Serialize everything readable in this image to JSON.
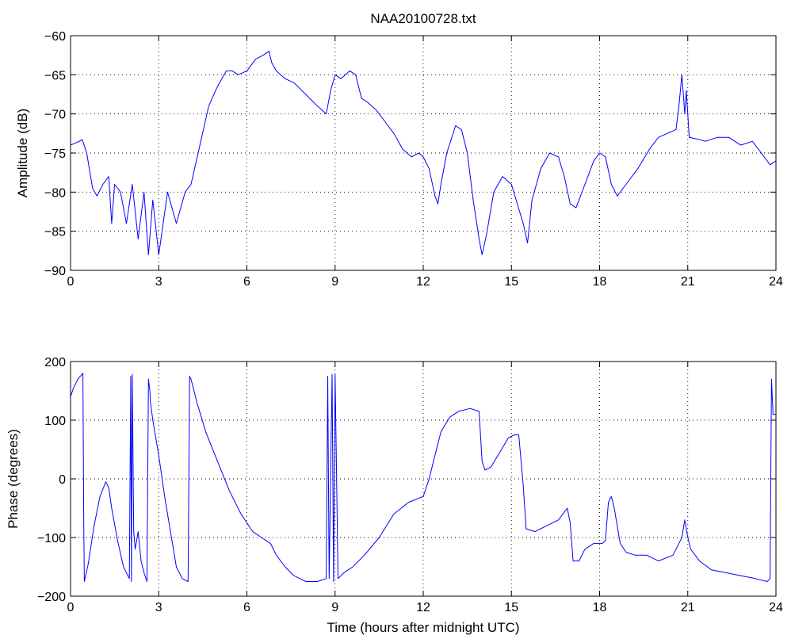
{
  "chart_data": [
    {
      "type": "line",
      "title": "NAA20100728.txt",
      "xlabel": "",
      "ylabel": "Amplitude (dB)",
      "xlim": [
        0,
        24
      ],
      "ylim": [
        -90,
        -60
      ],
      "xticks": [
        "0",
        "3",
        "6",
        "9",
        "12",
        "15",
        "18",
        "21",
        "24"
      ],
      "yticks": [
        "-60",
        "-65",
        "-70",
        "-75",
        "-80",
        "-85",
        "-90"
      ],
      "grid": true,
      "color": "#0000ff",
      "series": [
        {
          "x": [
            0,
            0.3,
            0.4,
            0.55,
            0.75,
            0.9,
            1.1,
            1.3,
            1.4,
            1.5,
            1.7,
            1.9,
            2.1,
            2.3,
            2.5,
            2.65,
            2.8,
            3.0,
            3.3,
            3.6,
            3.9,
            4.1,
            4.4,
            4.7,
            5.0,
            5.3,
            5.5,
            5.7,
            6.0,
            6.3,
            6.55,
            6.75,
            6.85,
            7.0,
            7.3,
            7.6,
            8.0,
            8.4,
            8.7,
            8.85,
            9.0,
            9.2,
            9.5,
            9.7,
            9.9,
            10.1,
            10.4,
            10.7,
            11.0,
            11.3,
            11.6,
            11.85,
            12.0,
            12.2,
            12.4,
            12.5,
            12.6,
            12.8,
            13.1,
            13.3,
            13.5,
            13.7,
            13.9,
            14.0,
            14.15,
            14.4,
            14.7,
            15.0,
            15.2,
            15.4,
            15.55,
            15.7,
            16.0,
            16.3,
            16.6,
            16.8,
            17.0,
            17.2,
            17.5,
            17.8,
            18.0,
            18.2,
            18.4,
            18.6,
            18.9,
            19.3,
            19.7,
            20.0,
            20.3,
            20.6,
            20.7,
            20.8,
            20.9,
            20.95,
            21.05,
            21.3,
            21.6,
            22.0,
            22.4,
            22.8,
            23.2,
            23.5,
            23.8,
            24.0
          ],
          "y": [
            -74,
            -73.5,
            -73.3,
            -75,
            -79.5,
            -80.5,
            -79,
            -78,
            -84,
            -79,
            -80,
            -84,
            -79,
            -86,
            -80,
            -88,
            -81,
            -88,
            -80,
            -84,
            -80,
            -79,
            -74,
            -69,
            -66.5,
            -64.5,
            -64.5,
            -65,
            -64.5,
            -63,
            -62.5,
            -62,
            -63.5,
            -64.5,
            -65.5,
            -66,
            -67.5,
            -69,
            -70,
            -67,
            -65,
            -65.5,
            -64.5,
            -65,
            -68,
            -68.5,
            -69.5,
            -71,
            -72.5,
            -74.5,
            -75.5,
            -75,
            -75.5,
            -77,
            -80.5,
            -81.5,
            -79,
            -75,
            -71.5,
            -72,
            -75,
            -81,
            -86,
            -88,
            -85.5,
            -80,
            -78,
            -79,
            -81.5,
            -84,
            -86.5,
            -81,
            -77,
            -75,
            -75.5,
            -78,
            -81.5,
            -82,
            -79,
            -76,
            -75,
            -75.5,
            -79,
            -80.5,
            -79,
            -77,
            -74.5,
            -73,
            -72.5,
            -72,
            -69,
            -65,
            -70,
            -67,
            -73,
            -73.2,
            -73.5,
            -73,
            -73,
            -74,
            -73.5,
            -75,
            -76.5,
            -76
          ]
        }
      ]
    },
    {
      "type": "line",
      "title": "",
      "xlabel": "Time (hours after midnight UTC)",
      "ylabel": "Phase (degrees)",
      "xlim": [
        0,
        24
      ],
      "ylim": [
        -200,
        200
      ],
      "xticks": [
        "0",
        "3",
        "6",
        "9",
        "12",
        "15",
        "18",
        "21",
        "24"
      ],
      "yticks": [
        "200",
        "100",
        "0",
        "-100",
        "-200"
      ],
      "grid": true,
      "color": "#0000ff",
      "series": [
        {
          "x": [
            0,
            0.1,
            0.25,
            0.42,
            0.45,
            0.47,
            0.6,
            0.8,
            1.0,
            1.2,
            1.3,
            1.4,
            1.6,
            1.8,
            2.0,
            2.05,
            2.07,
            2.1,
            2.15,
            2.2,
            2.3,
            2.4,
            2.5,
            2.6,
            2.65,
            2.7,
            2.72,
            2.8,
            3.0,
            3.2,
            3.4,
            3.6,
            3.8,
            4.0,
            4.05,
            4.1,
            4.3,
            4.6,
            5.0,
            5.4,
            5.8,
            6.2,
            6.5,
            6.8,
            7.0,
            7.3,
            7.6,
            8.0,
            8.4,
            8.7,
            8.75,
            8.8,
            8.9,
            8.95,
            9.0,
            9.1,
            9.3,
            9.6,
            10.0,
            10.5,
            11.0,
            11.5,
            12.0,
            12.2,
            12.4,
            12.6,
            12.9,
            13.2,
            13.6,
            13.9,
            14.0,
            14.1,
            14.3,
            14.6,
            14.9,
            15.1,
            15.25,
            15.4,
            15.5,
            15.8,
            16.2,
            16.6,
            16.9,
            17.0,
            17.1,
            17.3,
            17.5,
            17.8,
            18.1,
            18.2,
            18.3,
            18.4,
            18.5,
            18.7,
            18.9,
            19.2,
            19.6,
            20.0,
            20.5,
            20.8,
            20.9,
            21.0,
            21.1,
            21.4,
            21.8,
            22.3,
            22.8,
            23.3,
            23.7,
            23.8,
            23.85,
            23.9,
            24.0
          ],
          "y": [
            140,
            155,
            170,
            180,
            -80,
            -175,
            -145,
            -80,
            -30,
            -5,
            -15,
            -50,
            -105,
            -150,
            -170,
            175,
            -175,
            178,
            -90,
            -120,
            -90,
            -140,
            -160,
            -175,
            170,
            150,
            130,
            100,
            40,
            -30,
            -90,
            -150,
            -170,
            -175,
            175,
            170,
            130,
            80,
            30,
            -20,
            -60,
            -90,
            -100,
            -110,
            -130,
            -150,
            -165,
            -175,
            -175,
            -170,
            175,
            -170,
            178,
            -175,
            178,
            -170,
            -160,
            -150,
            -130,
            -100,
            -60,
            -40,
            -30,
            0,
            40,
            80,
            105,
            115,
            120,
            115,
            30,
            15,
            20,
            45,
            70,
            75,
            75,
            -10,
            -85,
            -90,
            -80,
            -70,
            -50,
            -75,
            -140,
            -140,
            -120,
            -110,
            -110,
            -105,
            -40,
            -30,
            -50,
            -110,
            -125,
            -130,
            -130,
            -140,
            -130,
            -100,
            -70,
            -100,
            -120,
            -140,
            -155,
            -160,
            -165,
            -170,
            -175,
            -170,
            170,
            110,
            110
          ]
        }
      ]
    }
  ]
}
